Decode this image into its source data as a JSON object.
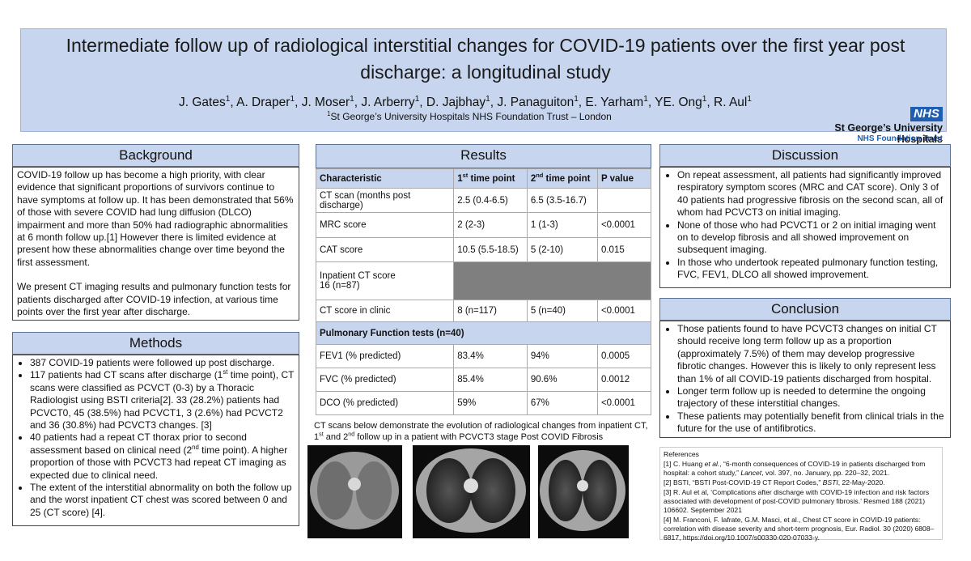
{
  "header": {
    "title": "Intermediate follow up of radiological interstitial changes for COVID-19 patients over the first year post discharge: a longitudinal study",
    "authors": [
      [
        {
          "t": "J. Gates"
        },
        {
          "sup": "1"
        },
        {
          "t": ",  "
        }
      ],
      [
        {
          "t": "A. Draper"
        },
        {
          "sup": "1"
        },
        {
          "t": ",  "
        }
      ],
      [
        {
          "t": "J. Moser"
        },
        {
          "sup": "1"
        },
        {
          "t": ",  "
        }
      ],
      [
        {
          "t": "J. Arberry"
        },
        {
          "sup": "1"
        },
        {
          "t": ",  "
        }
      ],
      [
        {
          "t": "D. Jajbhay"
        },
        {
          "sup": "1"
        },
        {
          "t": ",  "
        }
      ],
      [
        {
          "t": "J. Panaguiton"
        },
        {
          "sup": "1"
        },
        {
          "t": ",  "
        }
      ],
      [
        {
          "t": "E. Yarham"
        },
        {
          "sup": "1"
        },
        {
          "t": ",  "
        }
      ],
      [
        {
          "t": "YE. Ong"
        },
        {
          "sup": "1"
        },
        {
          "t": ",  "
        }
      ],
      [
        {
          "t": "R. Aul"
        },
        {
          "sup": "1"
        }
      ]
    ],
    "affiliation": [
      {
        "sup": "1"
      },
      {
        "t": "St George’s University Hospitals NHS Foundation Trust – London"
      }
    ]
  },
  "logo": {
    "nhs": "NHS",
    "name": "St George’s University Hospitals",
    "trust": "NHS Foundation Trust"
  },
  "background": {
    "heading": "Background",
    "paragraphs": [
      "COVID-19 follow up has become a high priority, with clear evidence that significant proportions of survivors continue to have symptoms at follow up. It has been demonstrated that 56% of those with severe COVID had lung diffusion (DLCO) impairment and more than 50% had radiographic abnormalities at 6 month follow up.[1] However there is limited evidence at present how these abnormalities change over time beyond the first assessment.",
      "We present  CT imaging results and pulmonary function tests for patients discharged after COVID-19 infection, at various time points over the first year after discharge."
    ]
  },
  "methods": {
    "heading": "Methods",
    "bullets": [
      "387 COVID-19 patients were followed up post discharge.",
      [
        {
          "t": "117 patients had CT scans after discharge (1"
        },
        {
          "sup": "st"
        },
        {
          "t": " time point),  CT scans were classified  as PCVCT (0-3) by a Thoracic Radiologist using BSTI criteria[2].  33 (28.2%) patients had PCVCT0,  45 (38.5%) had  PCVCT1, 3 (2.6%) had PCVCT2 and 36 (30.8%) had PCVCT3 changes. [3]"
        }
      ],
      [
        {
          "t": "40 patients had a repeat CT thorax prior to second assessment based on clinical need (2"
        },
        {
          "sup": "nd"
        },
        {
          "t": " time point). A higher proportion of those with PCVCT3 had repeat CT imaging as expected due to clinical need."
        }
      ],
      "The extent of the interstitial abnormality on both the follow up and the worst inpatient CT chest was scored between 0 and 25 (CT score)  [4]."
    ]
  },
  "results": {
    "heading": "Results",
    "table": {
      "header": [
        "Characteristic",
        [
          {
            "t": "1"
          },
          {
            "sup": "st"
          },
          {
            "t": " time point"
          }
        ],
        [
          {
            "t": "2"
          },
          {
            "sup": "nd"
          },
          {
            "t": " time point"
          }
        ],
        "P value"
      ],
      "rows": [
        [
          "CT scan (months post discharge)",
          "2.5 (0.4-6.5)",
          "6.5 (3.5-16.7)"
        ],
        [
          "MRC score",
          "2 (2-3)",
          "1 (1-3)",
          "<0.0001"
        ],
        [
          "CAT score",
          "10.5 (5.5-18.5)",
          "5 (2-10)",
          "0.015"
        ],
        [
          "Inpatient CT score\n16  (n=87)"
        ],
        [
          "CT score in clinic",
          "8 (n=117)",
          "5 (n=40)",
          "<0.0001"
        ]
      ],
      "section": "Pulmonary Function tests (n=40)",
      "pft_rows": [
        [
          "FEV1 (% predicted)",
          "83.4%",
          "94%",
          "0.0005"
        ],
        [
          "FVC (% predicted)",
          "85.4%",
          "90.6%",
          "0.0012"
        ],
        [
          "DCO (% predicted)",
          "59%",
          "67%",
          "<0.0001"
        ]
      ]
    },
    "caption": [
      {
        "t": "CT scans below demonstrate the evolution of radiological changes from inpatient CT, 1"
      },
      {
        "sup": "st"
      },
      {
        "t": " and 2"
      },
      {
        "sup": "nd"
      },
      {
        "t": " follow up in a patient with PCVCT3 stage Post COVID Fibrosis"
      }
    ]
  },
  "discussion": {
    "heading": "Discussion",
    "bullets": [
      "On repeat assessment, all patients had significantly improved respiratory symptom scores (MRC and CAT score). Only 3 of 40 patients had progressive fibrosis on the second scan, all of whom had PCVCT3 on initial imaging.",
      "None of those who had PCVCT1 or 2 on initial imaging went on to develop fibrosis and all showed improvement on subsequent imaging.",
      "In those who undertook repeated pulmonary function testing, FVC, FEV1, DLCO all showed improvement."
    ]
  },
  "conclusion": {
    "heading": "Conclusion",
    "bullets": [
      "Those patients found to have PCVCT3 changes on initial CT should receive long term follow up as a proportion (approximately 7.5%) of them may develop progressive fibrotic changes. However this is likely to only represent less than 1% of all COVID-19 patients discharged from hospital.",
      "Longer term follow up is needed to determine the ongoing trajectory of these interstitial changes.",
      "These patients may potentially benefit from clinical trials in the future for the use of antifibrotics."
    ]
  },
  "references": {
    "heading": "References",
    "items": [
      [
        {
          "t": "[1]     C. Huang "
        },
        {
          "i": "et al."
        },
        {
          "t": ", “6-month consequences of COVID-19 in patients discharged from hospital: a cohort study,” "
        },
        {
          "i": "Lancet"
        },
        {
          "t": ", vol. 397, no. January, pp. 220–32, 2021."
        }
      ],
      [
        {
          "t": "[2]     BSTI, “BSTI Post-COVID-19 CT Report Codes,” "
        },
        {
          "i": "BSTI"
        },
        {
          "t": ", 22-May-2020."
        }
      ],
      "[3]    R. Aul et al, ‘Complications after discharge with COVID-19 infection and risk factors associated with development of post-COVID pulmonary fibrosis.’ Resmed 188 (2021) 106602. September 2021",
      "[4]    M. Franconi, F. Iafrate, G.M. Masci, et al., Chest CT score in COVID-19 patients: correlation with disease severity and short-term prognosis, Eur. Radiol. 30 (2020) 6808–6817, https://doi.org/10.1007/s00330-020-07033-y."
    ]
  }
}
